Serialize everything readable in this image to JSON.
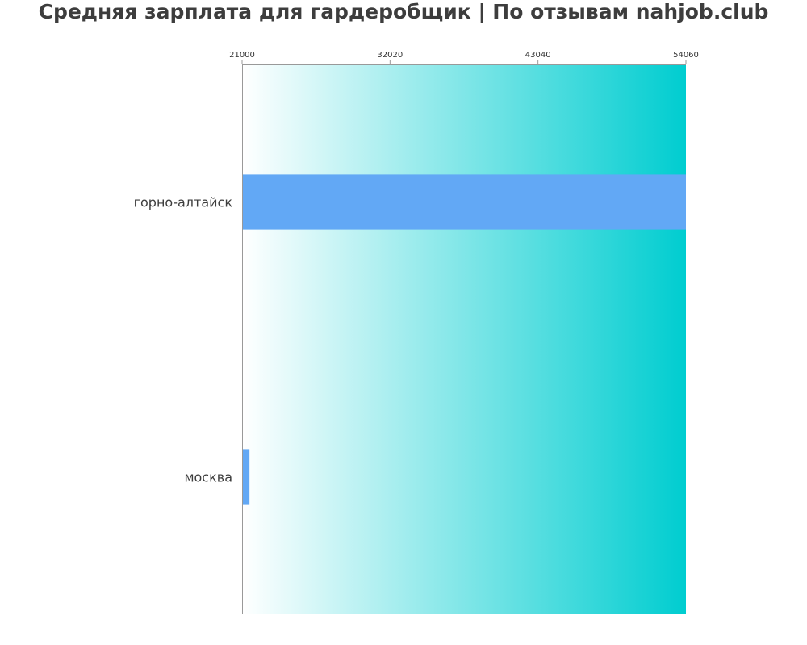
{
  "chart_data": {
    "type": "bar",
    "orientation": "horizontal",
    "title": "Средняя зарплата для гардеробщик | По отзывам nahjob.club",
    "xlabel": "",
    "ylabel": "",
    "categories": [
      "горно-алтайск",
      "москва"
    ],
    "values": [
      54060,
      21550
    ],
    "xlim": [
      21000,
      54060
    ],
    "x_ticks": [
      "21000",
      "32020",
      "43040",
      "54060"
    ],
    "axis_position": "top",
    "grid": false,
    "legend": "none",
    "colors": {
      "bar": "#62a8f5",
      "background_gradient_start": "#ffffff",
      "background_gradient_end": "#00cdd0",
      "axis": "#999999",
      "text": "#3d3d3d"
    }
  }
}
